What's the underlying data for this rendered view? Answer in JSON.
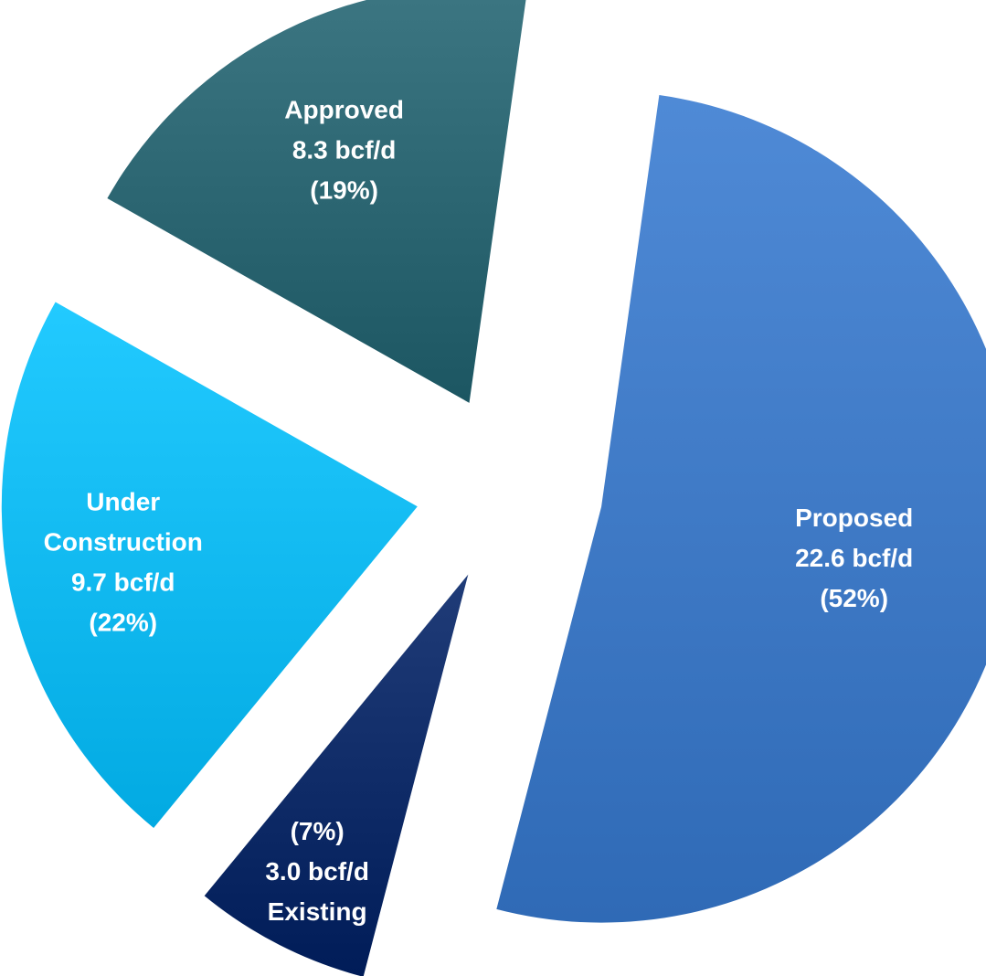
{
  "chart_data": {
    "type": "pie",
    "title": "",
    "unit": "bcf/d",
    "slices": [
      {
        "name": "Proposed",
        "value": 22.6,
        "percent": 52,
        "color": "#3d78c4",
        "label_lines": [
          "Proposed",
          "22.6 bcf/d",
          "(52%)"
        ]
      },
      {
        "name": "Existing",
        "value": 3.0,
        "percent": 7,
        "color": "#0e2a66",
        "label_lines": [
          "(7%)",
          "3.0 bcf/d",
          "Existing"
        ]
      },
      {
        "name": "Under Construction",
        "value": 9.7,
        "percent": 22,
        "color": "#10b8f0",
        "label_lines": [
          "Under",
          "Construction",
          "9.7 bcf/d",
          "(22%)"
        ]
      },
      {
        "name": "Approved",
        "value": 8.3,
        "percent": 19,
        "color": "#2a6470",
        "label_lines": [
          "Approved",
          "8.3 bcf/d",
          "(19%)"
        ]
      }
    ],
    "exploded": true,
    "legend": "none"
  }
}
